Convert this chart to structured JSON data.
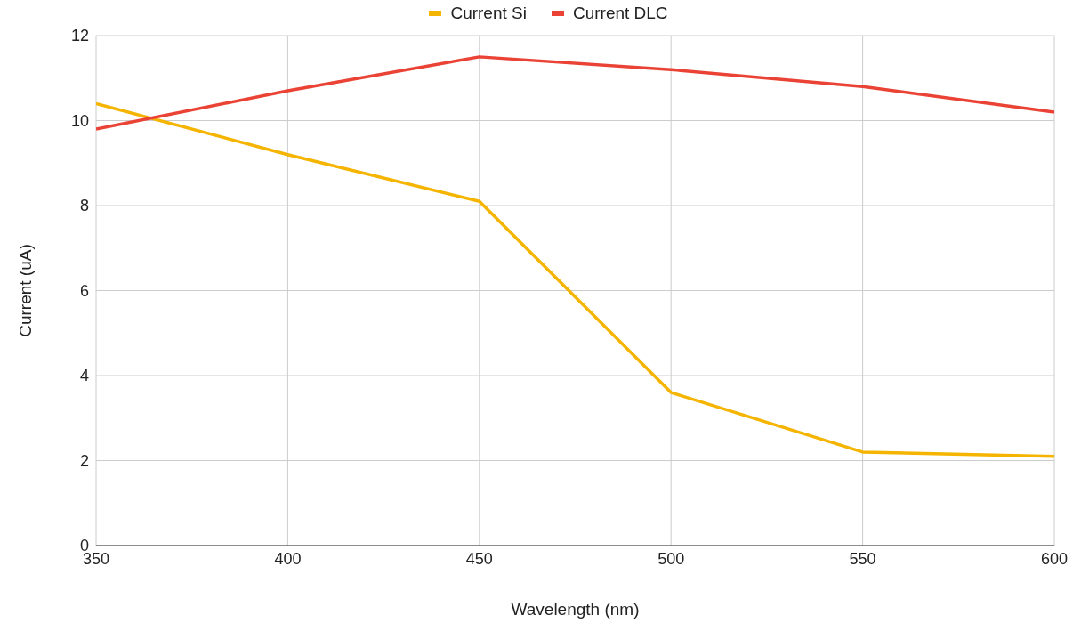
{
  "chart_data": {
    "type": "line",
    "xlabel": "Wavelength (nm)",
    "ylabel": "Current (uA)",
    "x": [
      350,
      400,
      450,
      500,
      550,
      600
    ],
    "series": [
      {
        "name": "Current Si",
        "color": "#f4b400",
        "values": [
          10.4,
          9.2,
          8.1,
          3.6,
          2.2,
          2.1
        ]
      },
      {
        "name": "Current DLC",
        "color": "#ea4335",
        "values": [
          9.8,
          10.7,
          11.5,
          11.2,
          10.8,
          10.2
        ]
      }
    ],
    "xlim": [
      350,
      600
    ],
    "xticks": [
      350,
      400,
      450,
      500,
      550,
      600
    ],
    "ylim": [
      0,
      12
    ],
    "yticks": [
      0,
      2,
      4,
      6,
      8,
      10,
      12
    ],
    "grid": true,
    "legend": "top",
    "marker": "none",
    "line_style": "solid"
  }
}
